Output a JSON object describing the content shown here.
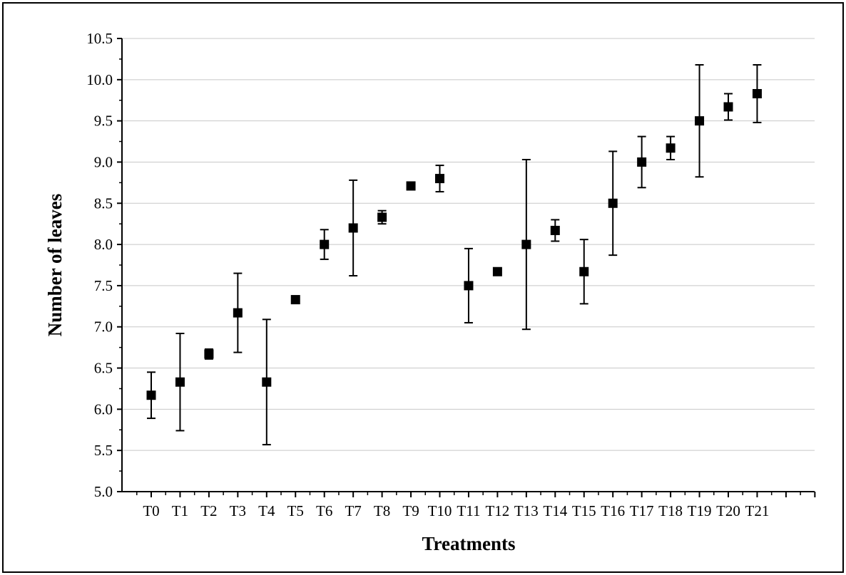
{
  "chart_data": {
    "type": "scatter",
    "xlabel": "Treatments",
    "ylabel": "Number of leaves",
    "categories": [
      "T0",
      "T1",
      "T2",
      "T3",
      "T4",
      "T5",
      "T6",
      "T7",
      "T8",
      "T9",
      "T10",
      "T11",
      "T12",
      "T13",
      "T14",
      "T15",
      "T16",
      "T17",
      "T18",
      "T19",
      "T20",
      "T21"
    ],
    "values": [
      6.17,
      6.33,
      6.67,
      7.17,
      6.33,
      7.33,
      8.0,
      8.2,
      8.33,
      8.71,
      8.8,
      7.5,
      7.67,
      8.0,
      8.17,
      7.67,
      8.5,
      9.0,
      9.17,
      9.5,
      9.67,
      9.83
    ],
    "error_low": [
      5.89,
      5.74,
      6.61,
      6.69,
      5.57,
      7.3,
      7.82,
      7.62,
      8.25,
      8.69,
      8.64,
      7.05,
      7.64,
      6.97,
      8.04,
      7.28,
      7.87,
      8.69,
      9.03,
      8.82,
      9.51,
      9.48
    ],
    "error_high": [
      6.45,
      6.92,
      6.73,
      7.65,
      7.09,
      7.36,
      8.18,
      8.78,
      8.41,
      8.73,
      8.96,
      7.95,
      7.7,
      9.03,
      8.3,
      8.06,
      9.13,
      9.31,
      9.31,
      10.18,
      9.83,
      10.18
    ],
    "ylim": [
      5.0,
      10.5
    ],
    "yticks": [
      "5.0",
      "5.5",
      "6.0",
      "6.5",
      "7.0",
      "7.5",
      "8.0",
      "8.5",
      "9.0",
      "9.5",
      "10.0",
      "10.5"
    ],
    "grid": "horizontal",
    "marker": "square",
    "color": "#000000",
    "grid_color": "#c8c8c8"
  }
}
